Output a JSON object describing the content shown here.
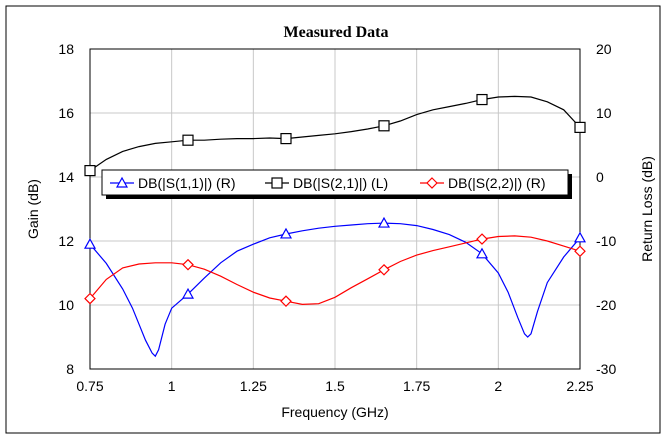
{
  "chart_data": {
    "type": "line",
    "title": "Measured Data",
    "xlabel": "Frequency (GHz)",
    "ylabel_left": "Gain (dB)",
    "ylabel_right": "Return Loss (dB)",
    "xlim": [
      0.75,
      2.25
    ],
    "ylim_left": [
      8,
      18
    ],
    "ylim_right": [
      -30,
      20
    ],
    "xticks": [
      0.75,
      1,
      1.25,
      1.5,
      1.75,
      2,
      2.25
    ],
    "xtick_labels": [
      "0.75",
      "1",
      "1.25",
      "1.5",
      "1.75",
      "2",
      "2.25"
    ],
    "yticks_left": [
      8,
      10,
      12,
      14,
      16,
      18
    ],
    "yticks_right": [
      -30,
      -20,
      -10,
      0,
      10,
      20
    ],
    "grid": true,
    "legend_position": "middle-left",
    "series": [
      {
        "name": "DB(|S(1,1)|) (R)",
        "axis": "right",
        "color": "#0000ff",
        "marker": "triangle",
        "marker_x": [
          0.75,
          1.05,
          1.35,
          1.65,
          1.95,
          2.25
        ],
        "x": [
          0.75,
          0.8,
          0.85,
          0.88,
          0.9,
          0.92,
          0.94,
          0.95,
          0.96,
          0.98,
          1.0,
          1.05,
          1.1,
          1.15,
          1.2,
          1.25,
          1.3,
          1.35,
          1.4,
          1.45,
          1.5,
          1.55,
          1.6,
          1.65,
          1.7,
          1.75,
          1.8,
          1.85,
          1.9,
          1.95,
          2.0,
          2.03,
          2.06,
          2.08,
          2.09,
          2.1,
          2.12,
          2.15,
          2.2,
          2.25
        ],
        "y": [
          -10.5,
          -13.5,
          -17.5,
          -20.5,
          -23.0,
          -25.5,
          -27.5,
          -28.0,
          -27.0,
          -23.0,
          -20.5,
          -18.3,
          -15.8,
          -13.4,
          -11.6,
          -10.5,
          -9.5,
          -8.9,
          -8.4,
          -8.0,
          -7.7,
          -7.5,
          -7.3,
          -7.2,
          -7.3,
          -7.6,
          -8.2,
          -9.0,
          -10.2,
          -12.0,
          -15.0,
          -18.0,
          -22.0,
          -24.5,
          -25.0,
          -24.5,
          -21.0,
          -16.5,
          -12.5,
          -9.5
        ]
      },
      {
        "name": "DB(|S(2,1)|) (L)",
        "axis": "left",
        "color": "#000000",
        "marker": "square",
        "marker_x": [
          0.75,
          1.05,
          1.35,
          1.65,
          1.95,
          2.25
        ],
        "x": [
          0.75,
          0.8,
          0.85,
          0.9,
          0.95,
          1.0,
          1.05,
          1.1,
          1.15,
          1.2,
          1.25,
          1.3,
          1.35,
          1.4,
          1.45,
          1.5,
          1.55,
          1.6,
          1.65,
          1.7,
          1.75,
          1.8,
          1.85,
          1.9,
          1.95,
          2.0,
          2.05,
          2.1,
          2.15,
          2.2,
          2.25
        ],
        "y": [
          14.2,
          14.55,
          14.8,
          14.95,
          15.05,
          15.1,
          15.15,
          15.15,
          15.18,
          15.2,
          15.2,
          15.22,
          15.2,
          15.25,
          15.3,
          15.35,
          15.42,
          15.5,
          15.6,
          15.75,
          15.95,
          16.1,
          16.2,
          16.3,
          16.42,
          16.5,
          16.52,
          16.5,
          16.35,
          16.1,
          15.55
        ]
      },
      {
        "name": "DB(|S(2,2)|) (R)",
        "axis": "right",
        "color": "#ff0000",
        "marker": "diamond",
        "marker_x": [
          0.75,
          1.05,
          1.35,
          1.65,
          1.95,
          2.25
        ],
        "x": [
          0.75,
          0.8,
          0.85,
          0.9,
          0.95,
          1.0,
          1.05,
          1.1,
          1.15,
          1.2,
          1.25,
          1.3,
          1.35,
          1.4,
          1.45,
          1.5,
          1.55,
          1.6,
          1.65,
          1.7,
          1.75,
          1.8,
          1.85,
          1.9,
          1.95,
          2.0,
          2.05,
          2.1,
          2.15,
          2.2,
          2.25
        ],
        "y": [
          -19.0,
          -16.0,
          -14.2,
          -13.6,
          -13.4,
          -13.4,
          -13.7,
          -14.4,
          -15.5,
          -16.8,
          -18.0,
          -18.9,
          -19.4,
          -19.9,
          -19.8,
          -18.8,
          -17.3,
          -15.9,
          -14.5,
          -13.2,
          -12.2,
          -11.5,
          -10.9,
          -10.3,
          -9.7,
          -9.3,
          -9.2,
          -9.4,
          -10.0,
          -10.8,
          -11.6
        ]
      }
    ]
  }
}
